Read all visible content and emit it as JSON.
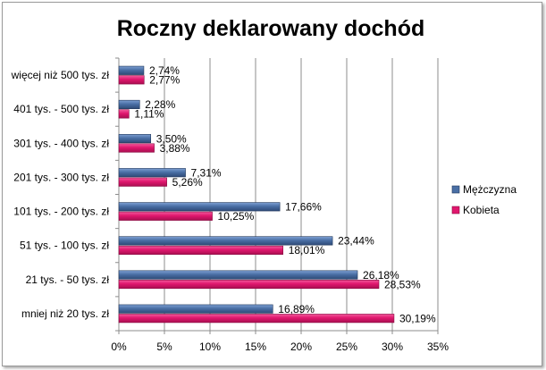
{
  "chart_data": {
    "type": "bar",
    "orientation": "horizontal",
    "title": "Roczny deklarowany dochód",
    "categories": [
      "więcej niż 500 tys. zł",
      "401 tys. - 500 tys. zł",
      "301 tys. - 400 tys. zł",
      "201 tys. - 300 tys. zł",
      "101 tys. - 200 tys. zł",
      "51 tys. - 100 tys. zł",
      "21 tys. - 50 tys. zł",
      "mniej niż 20 tys. zł"
    ],
    "series": [
      {
        "name": "Mężczyzna",
        "color": "#4a6fa5",
        "values": [
          2.74,
          2.28,
          3.5,
          7.31,
          17.66,
          23.44,
          26.18,
          16.89
        ],
        "labels": [
          "2,74%",
          "2,28%",
          "3,50%",
          "7,31%",
          "17,66%",
          "23,44%",
          "26,18%",
          "16,89%"
        ]
      },
      {
        "name": "Kobieta",
        "color": "#e0176e",
        "values": [
          2.77,
          1.11,
          3.88,
          5.26,
          10.25,
          18.01,
          28.53,
          30.19
        ],
        "labels": [
          "2,77%",
          "1,11%",
          "3,88%",
          "5,26%",
          "10,25%",
          "18,01%",
          "28,53%",
          "30,19%"
        ]
      }
    ],
    "xlim": [
      0,
      35
    ],
    "xticks": [
      0,
      5,
      10,
      15,
      20,
      25,
      30,
      35
    ],
    "xtick_labels": [
      "0%",
      "5%",
      "10%",
      "15%",
      "20%",
      "25%",
      "30%",
      "35%"
    ],
    "grid": true,
    "legend_position": "right"
  }
}
